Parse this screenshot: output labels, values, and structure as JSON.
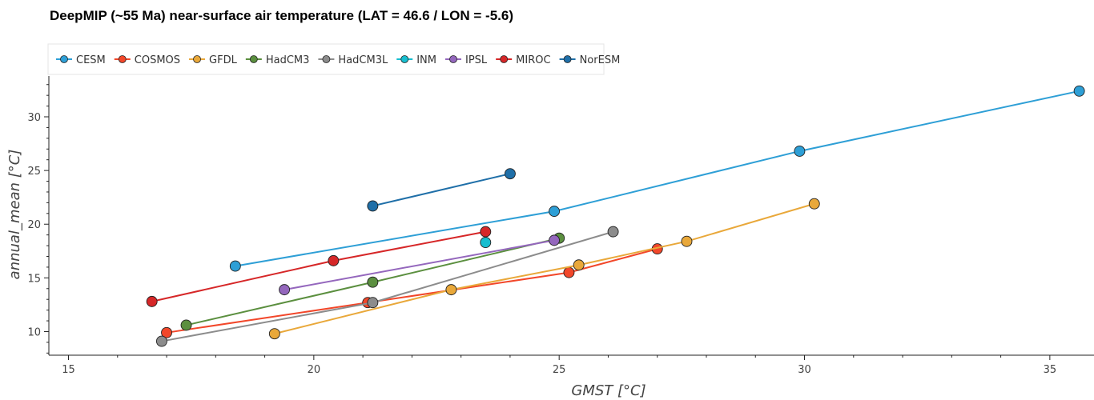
{
  "chart_data": {
    "type": "line",
    "title": "DeepMIP (~55 Ma) near-surface air temperature (LAT = 46.6 / LON = -5.6)",
    "xlabel": "GMST [°C]",
    "ylabel": "annual_mean [°C]",
    "xlim": [
      14.6,
      35.9
    ],
    "ylim": [
      7.8,
      33.8
    ],
    "xticks": [
      15,
      20,
      25,
      30,
      35
    ],
    "yticks": [
      10,
      15,
      20,
      25,
      30
    ],
    "grid": false,
    "legend_position": "top-left",
    "series": [
      {
        "name": "CESM",
        "color": "#2e9fd6",
        "points": [
          [
            18.4,
            16.1
          ],
          [
            24.9,
            21.2
          ],
          [
            29.9,
            26.8
          ],
          [
            35.6,
            32.4
          ]
        ]
      },
      {
        "name": "COSMOS",
        "color": "#f2472a",
        "points": [
          [
            17.0,
            9.9
          ],
          [
            21.1,
            12.7
          ],
          [
            25.2,
            15.5
          ],
          [
            27.0,
            17.7
          ]
        ]
      },
      {
        "name": "GFDL",
        "color": "#e9a83a",
        "points": [
          [
            19.2,
            9.8
          ],
          [
            22.8,
            13.9
          ],
          [
            25.4,
            16.2
          ],
          [
            27.6,
            18.4
          ],
          [
            30.2,
            21.9
          ]
        ]
      },
      {
        "name": "HadCM3",
        "color": "#5b8f3f",
        "points": [
          [
            17.4,
            10.6
          ],
          [
            21.2,
            14.6
          ],
          [
            25.0,
            18.7
          ]
        ]
      },
      {
        "name": "HadCM3L",
        "color": "#8c8c8c",
        "points": [
          [
            16.9,
            9.1
          ],
          [
            21.2,
            12.7
          ],
          [
            26.1,
            19.3
          ]
        ]
      },
      {
        "name": "INM",
        "color": "#17becf",
        "points": [
          [
            23.5,
            18.3
          ]
        ]
      },
      {
        "name": "IPSL",
        "color": "#9467bd",
        "points": [
          [
            19.4,
            13.9
          ],
          [
            24.9,
            18.5
          ]
        ]
      },
      {
        "name": "MIROC",
        "color": "#d62728",
        "points": [
          [
            16.7,
            12.8
          ],
          [
            20.4,
            16.6
          ],
          [
            23.5,
            19.3
          ]
        ]
      },
      {
        "name": "NorESM",
        "color": "#1f6fa8",
        "points": [
          [
            21.2,
            21.7
          ],
          [
            24.0,
            24.7
          ]
        ]
      }
    ]
  }
}
